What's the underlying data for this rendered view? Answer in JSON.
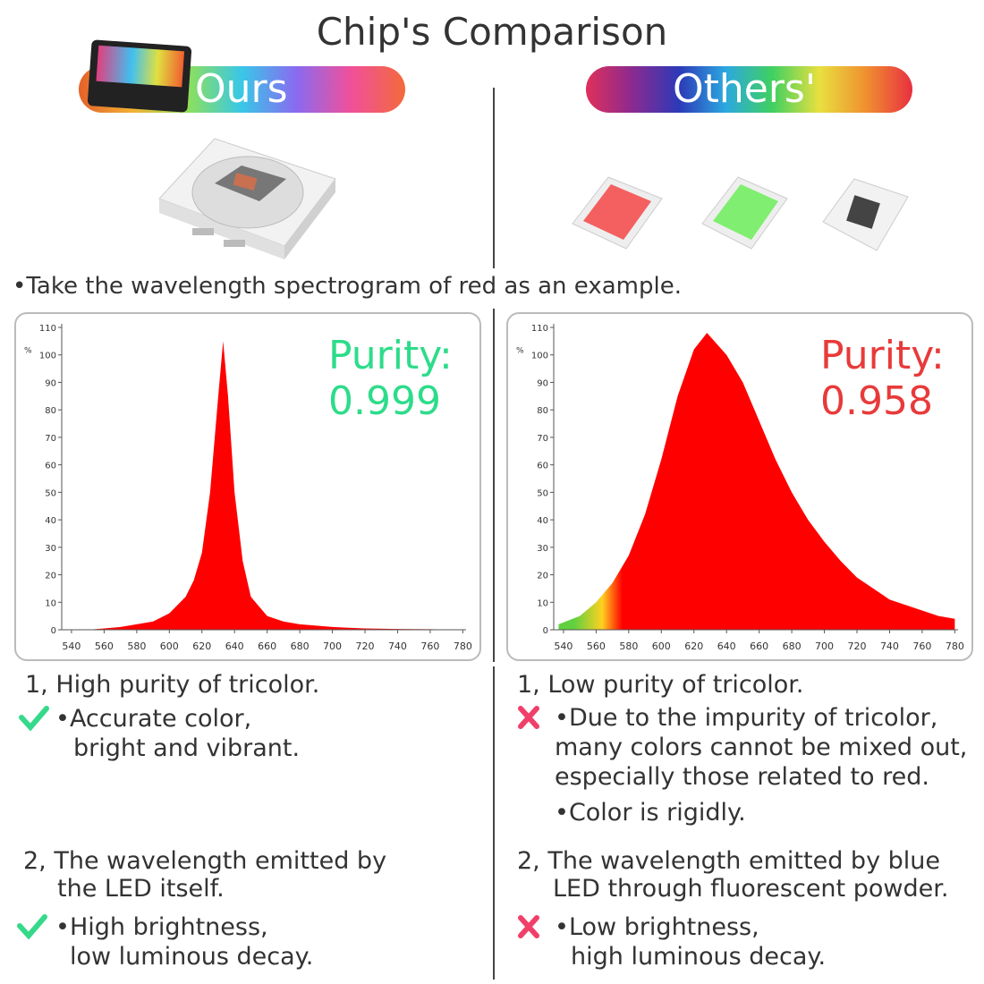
{
  "title": "Chip's Comparison",
  "headers": [
    "Ours",
    "Others'"
  ],
  "note": "Take the wavelength spectrogram of red as an example.",
  "chart_data": [
    {
      "type": "area",
      "annotation": "Purity:",
      "purity": 0.999,
      "annotation_color": "#2ddc8a",
      "color": "#ff0000",
      "y_label": "%",
      "x": [
        540,
        550,
        560,
        570,
        580,
        590,
        600,
        610,
        615,
        620,
        625,
        630,
        633,
        636,
        640,
        645,
        650,
        660,
        670,
        680,
        700,
        720,
        740,
        760,
        780
      ],
      "y": [
        0,
        0,
        0.5,
        1,
        2,
        3,
        6,
        12,
        18,
        28,
        50,
        85,
        105,
        85,
        50,
        25,
        12,
        5,
        3,
        2,
        1,
        0.5,
        0.3,
        0.2,
        0
      ],
      "xlim": [
        534,
        782
      ],
      "ylim": [
        0,
        110
      ],
      "xticks": [
        540,
        560,
        580,
        600,
        620,
        640,
        660,
        680,
        700,
        720,
        740,
        760,
        780
      ],
      "yticks": [
        0,
        10,
        20,
        30,
        40,
        50,
        60,
        70,
        80,
        90,
        100,
        110
      ]
    },
    {
      "type": "area",
      "annotation": "Purity:",
      "purity": 0.958,
      "annotation_color": "#e83a3a",
      "color": "#ff0000",
      "y_label": "%",
      "x": [
        537,
        550,
        560,
        570,
        580,
        590,
        600,
        610,
        620,
        628,
        640,
        650,
        660,
        670,
        680,
        690,
        700,
        710,
        720,
        730,
        740,
        750,
        760,
        770,
        780
      ],
      "y": [
        2,
        5,
        10,
        17,
        27,
        42,
        62,
        85,
        102,
        108,
        100,
        90,
        76,
        62,
        50,
        40,
        32,
        25,
        19,
        15,
        11,
        9,
        7,
        5,
        4
      ],
      "xlim": [
        534,
        782
      ],
      "ylim": [
        0,
        110
      ],
      "xticks": [
        540,
        560,
        580,
        600,
        620,
        640,
        660,
        680,
        700,
        720,
        740,
        760,
        780
      ],
      "yticks": [
        0,
        10,
        20,
        30,
        40,
        50,
        60,
        70,
        80,
        90,
        100,
        110
      ]
    }
  ],
  "points": {
    "ours": [
      {
        "heading": [
          "1, High purity of tricolor."
        ],
        "bullets": [
          [
            "Accurate color,",
            "bright and vibrant."
          ]
        ]
      },
      {
        "heading": [
          "2, The wavelength emitted by",
          "the LED itself."
        ],
        "bullets": [
          [
            "High brightness,",
            "low luminous decay."
          ]
        ]
      }
    ],
    "others": [
      {
        "heading": [
          "1, Low purity of tricolor."
        ],
        "bullets": [
          [
            "Due to the impurity of tricolor,",
            "many colors cannot be mixed out,",
            "especially those related to red."
          ],
          [
            "Color is rigidly."
          ]
        ]
      },
      {
        "heading": [
          "2, The wavelength emitted by blue",
          "LED through fluorescent powder."
        ],
        "bullets": [
          [
            "Low brightness,",
            "high luminous decay."
          ]
        ]
      }
    ]
  }
}
